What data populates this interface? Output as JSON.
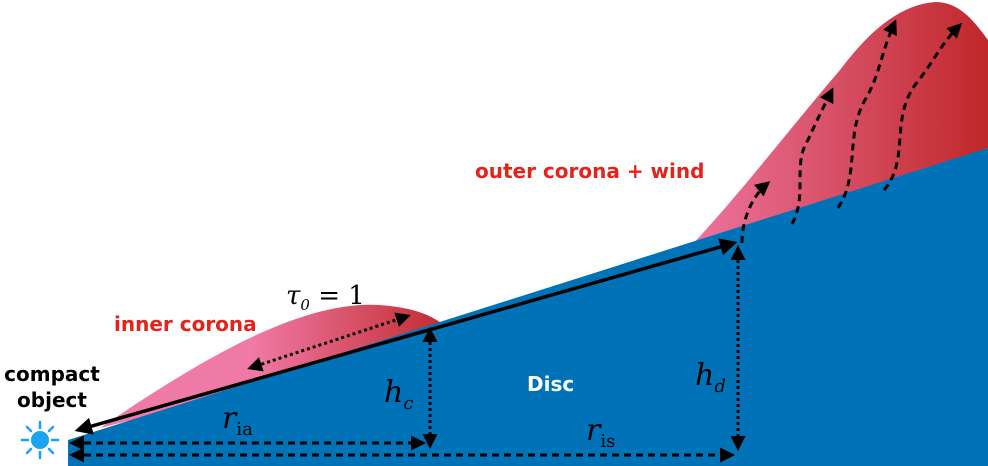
{
  "labels": {
    "compact_object_line1": "compact",
    "compact_object_line2": "object",
    "inner_corona": "inner corona",
    "outer_corona": "outer corona + wind",
    "disc": "Disc",
    "tau_main": "τ",
    "tau_sub": "0",
    "tau_rest": " = 1",
    "h_c_main": "h",
    "h_c_sub": "c",
    "h_d_main": "h",
    "h_d_sub": "d",
    "r_ia_main": "r",
    "r_ia_sub": "ia",
    "r_is_main": "r",
    "r_is_sub": "is"
  },
  "colors": {
    "disc": "#0072b8",
    "corona_light": "#f07aa6",
    "corona_dark": "#c0282a",
    "label_red": "#e3231c",
    "star": "#1aa3f0",
    "line": "#000000",
    "disc_text": "#ffffff"
  },
  "icons": {
    "compact_object": "sun-icon"
  }
}
